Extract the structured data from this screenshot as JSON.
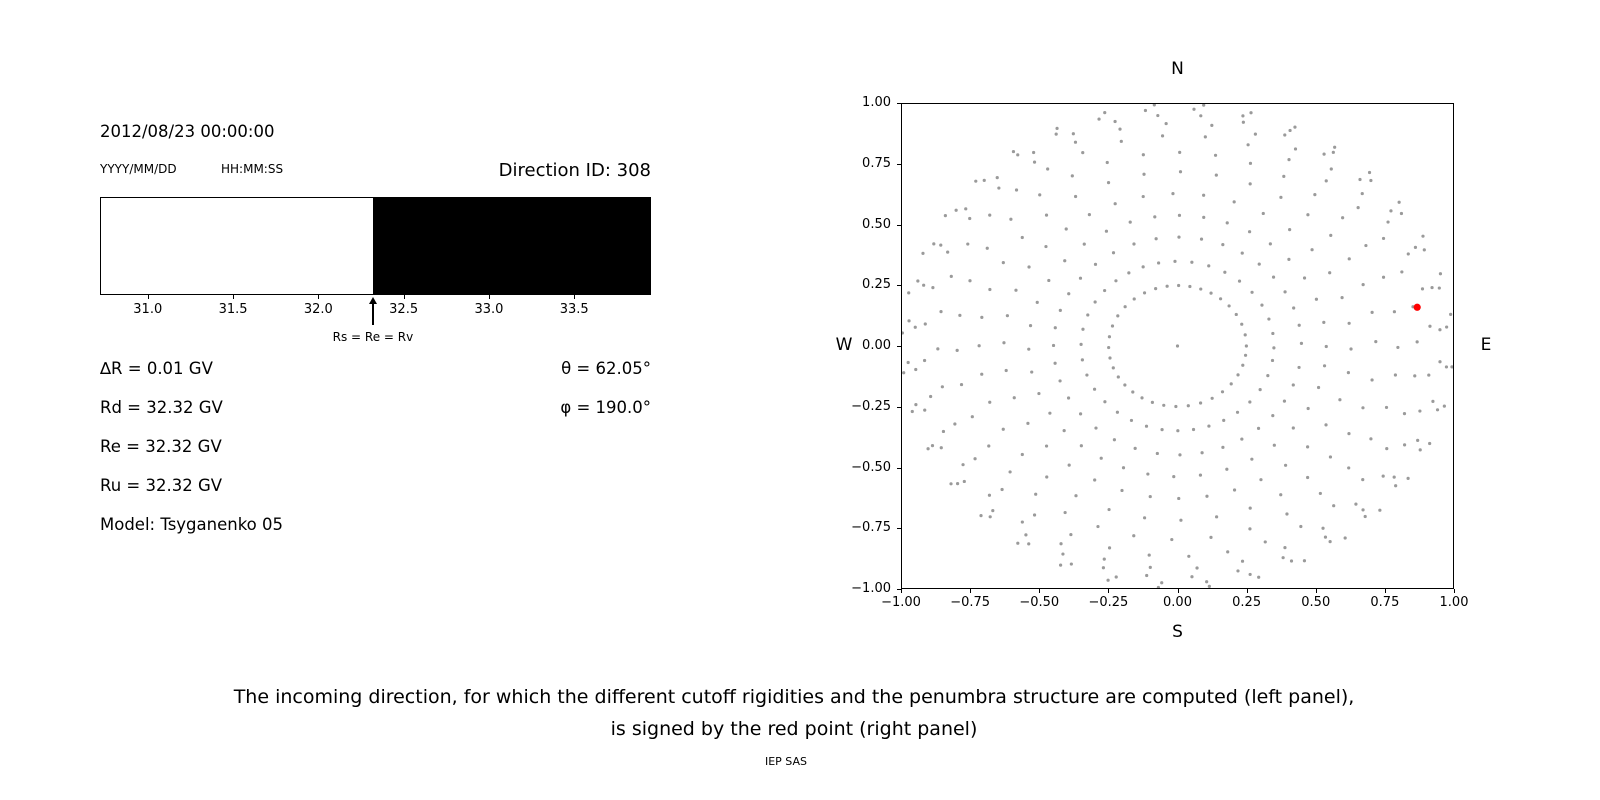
{
  "header": {
    "datetime": "2012/08/23 00:00:00",
    "date_format_label": "YYYY/MM/DD",
    "time_format_label": "HH:MM:SS",
    "direction_id": "Direction ID: 308"
  },
  "readouts": {
    "rows_left": [
      "∆R = 0.01 GV",
      "Rd = 32.32 GV",
      "Re = 32.32 GV",
      "Ru = 32.32 GV",
      "Model: Tsyganenko 05"
    ],
    "rows_right": [
      "θ = 62.05°",
      "φ = 190.0°"
    ]
  },
  "caption": {
    "line1": "The incoming direction, for which the different cutoff rigidities and the penumbra structure are computed (left panel),",
    "line2": "is signed by the red point (right panel)",
    "credit": "IEP SAS"
  },
  "chart_data": [
    {
      "type": "bar",
      "name": "penumbra-structure",
      "x_min": 30.72,
      "x_max": 33.95,
      "tick_values": [
        31.0,
        31.5,
        32.0,
        32.5,
        33.0,
        33.5
      ],
      "tick_labels": [
        "31.0",
        "31.5",
        "32.0",
        "32.5",
        "33.0",
        "33.5"
      ],
      "segments": [
        {
          "from": 30.72,
          "to": 32.32,
          "color": "#ffffff"
        },
        {
          "from": 32.32,
          "to": 33.95,
          "color": "#000000"
        }
      ],
      "arrow": {
        "x": 32.32,
        "label": "Rs = Re = Rv"
      }
    },
    {
      "type": "scatter",
      "name": "incoming-direction-map",
      "xlim": [
        -1.0,
        1.0
      ],
      "ylim": [
        -1.0,
        1.0
      ],
      "x_tick_values": [
        -1.0,
        -0.75,
        -0.5,
        -0.25,
        0.0,
        0.25,
        0.5,
        0.75,
        1.0
      ],
      "x_tick_labels": [
        "−1.00",
        "−0.75",
        "−0.50",
        "−0.25",
        "0.00",
        "0.25",
        "0.50",
        "0.75",
        "1.00"
      ],
      "y_tick_values": [
        -1.0,
        -0.75,
        -0.5,
        -0.25,
        0.0,
        0.25,
        0.5,
        0.75,
        1.0
      ],
      "y_tick_labels": [
        "−1.00",
        "−0.75",
        "−0.50",
        "−0.25",
        "0.00",
        "0.25",
        "0.50",
        "0.75",
        "1.00"
      ],
      "compass": {
        "n": "N",
        "s": "S",
        "e": "E",
        "w": "W"
      },
      "direction_grid": {
        "spoke_count": 36,
        "dot_radii": [
          0.25,
          0.35,
          0.45,
          0.54,
          0.63,
          0.72,
          0.8,
          0.87,
          0.92,
          0.955,
          0.98,
          1.0
        ],
        "tail_curl_deg": 6,
        "jitter_deg": 1.5,
        "center_dot": true,
        "dot_color": "#9a9a9a"
      },
      "selected_direction": {
        "x": 0.87,
        "y": 0.16,
        "color": "#ff0000"
      }
    }
  ]
}
